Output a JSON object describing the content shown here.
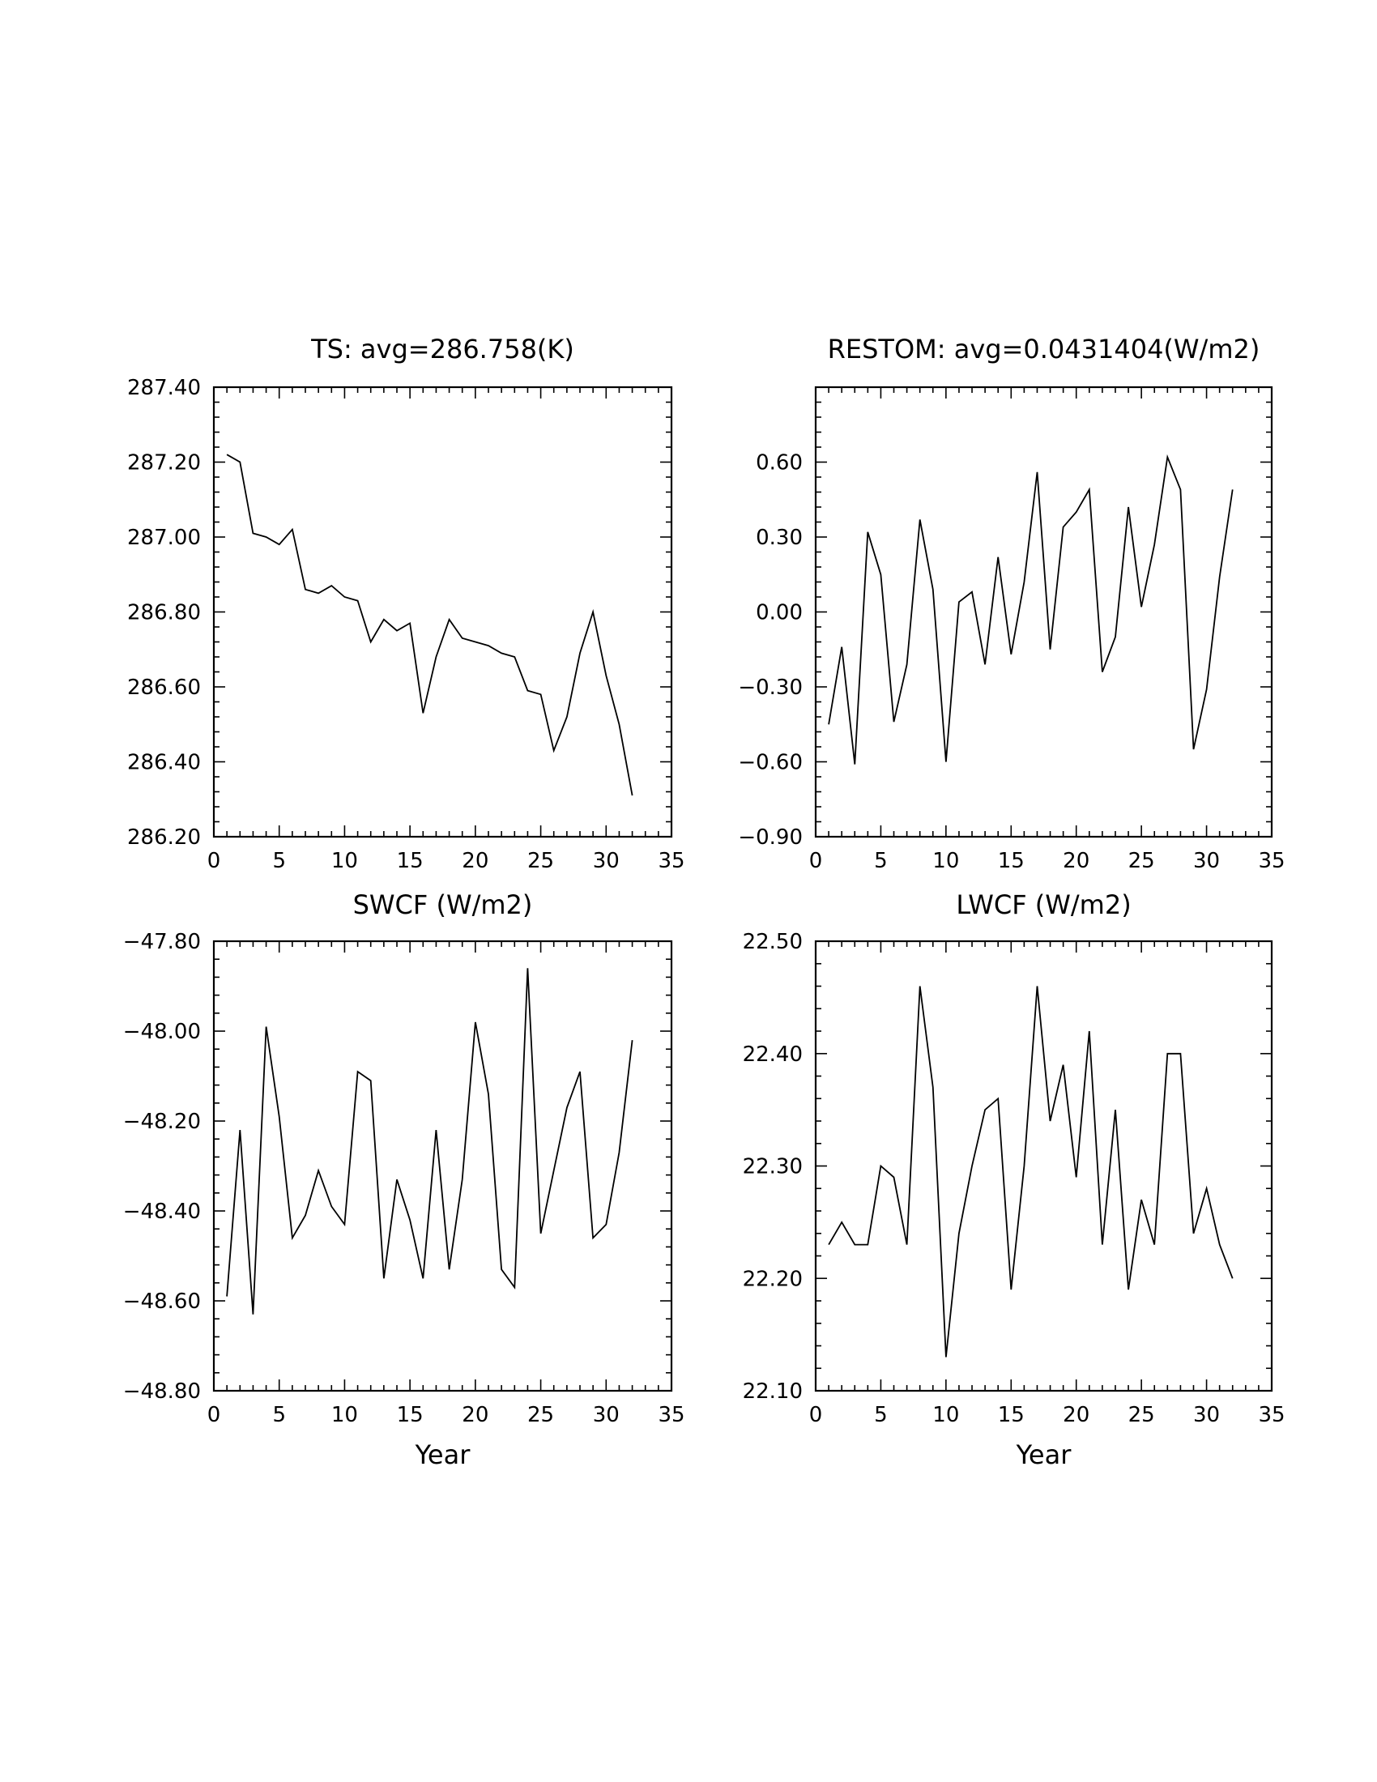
{
  "chart_data": [
    {
      "type": "line",
      "title": "TS: avg=286.758(K)",
      "xlabel": "",
      "ylabel": "",
      "xlim": [
        0,
        35
      ],
      "ylim": [
        286.2,
        287.4
      ],
      "xticks": [
        0,
        5,
        10,
        15,
        20,
        25,
        30,
        35
      ],
      "xtick_labels": [
        "0",
        "5",
        "10",
        "15",
        "20",
        "25",
        "30",
        "35"
      ],
      "yticks": [
        286.2,
        286.4,
        286.6,
        286.8,
        287.0,
        287.2,
        287.4
      ],
      "ytick_labels": [
        "286.20",
        "286.40",
        "286.60",
        "286.80",
        "287.00",
        "287.20",
        "287.40"
      ],
      "grid": false,
      "x": [
        1,
        2,
        3,
        4,
        5,
        6,
        7,
        8,
        9,
        10,
        11,
        12,
        13,
        14,
        15,
        16,
        17,
        18,
        19,
        20,
        21,
        22,
        23,
        24,
        25,
        26,
        27,
        28,
        29,
        30,
        31,
        32
      ],
      "values": [
        287.22,
        287.2,
        287.01,
        287.0,
        286.98,
        287.02,
        286.86,
        286.85,
        286.87,
        286.84,
        286.83,
        286.72,
        286.78,
        286.75,
        286.77,
        286.53,
        286.68,
        286.78,
        286.73,
        286.72,
        286.71,
        286.69,
        286.68,
        286.59,
        286.58,
        286.43,
        286.52,
        286.69,
        286.8,
        286.63,
        286.5,
        286.31
      ]
    },
    {
      "type": "line",
      "title": "RESTOM: avg=0.0431404(W/m2)",
      "xlabel": "",
      "ylabel": "",
      "xlim": [
        0,
        35
      ],
      "ylim": [
        -0.9,
        0.9
      ],
      "xticks": [
        0,
        5,
        10,
        15,
        20,
        25,
        30,
        35
      ],
      "xtick_labels": [
        "0",
        "5",
        "10",
        "15",
        "20",
        "25",
        "30",
        "35"
      ],
      "yticks": [
        -0.9,
        -0.6,
        -0.3,
        0.0,
        0.3,
        0.6
      ],
      "ytick_labels": [
        "−0.90",
        "−0.60",
        "−0.30",
        "0.00",
        "0.30",
        "0.60"
      ],
      "grid": false,
      "x": [
        1,
        2,
        3,
        4,
        5,
        6,
        7,
        8,
        9,
        10,
        11,
        12,
        13,
        14,
        15,
        16,
        17,
        18,
        19,
        20,
        21,
        22,
        23,
        24,
        25,
        26,
        27,
        28,
        29,
        30,
        31,
        32
      ],
      "values": [
        -0.45,
        -0.14,
        -0.61,
        0.32,
        0.15,
        -0.44,
        -0.21,
        0.37,
        0.09,
        -0.6,
        0.04,
        0.08,
        -0.21,
        0.22,
        -0.17,
        0.12,
        0.56,
        -0.15,
        0.34,
        0.4,
        0.49,
        -0.24,
        -0.1,
        0.42,
        0.02,
        0.27,
        0.62,
        0.49,
        -0.55,
        -0.31,
        0.14,
        0.49
      ]
    },
    {
      "type": "line",
      "title": "SWCF (W/m2)",
      "xlabel": "Year",
      "ylabel": "",
      "xlim": [
        0,
        35
      ],
      "ylim": [
        -48.8,
        -47.8
      ],
      "xticks": [
        0,
        5,
        10,
        15,
        20,
        25,
        30,
        35
      ],
      "xtick_labels": [
        "0",
        "5",
        "10",
        "15",
        "20",
        "25",
        "30",
        "35"
      ],
      "yticks": [
        -48.8,
        -48.6,
        -48.4,
        -48.2,
        -48.0,
        -47.8
      ],
      "ytick_labels": [
        "−48.80",
        "−48.60",
        "−48.40",
        "−48.20",
        "−48.00",
        "−47.80"
      ],
      "grid": false,
      "x": [
        1,
        2,
        3,
        4,
        5,
        6,
        7,
        8,
        9,
        10,
        11,
        12,
        13,
        14,
        15,
        16,
        17,
        18,
        19,
        20,
        21,
        22,
        23,
        24,
        25,
        26,
        27,
        28,
        29,
        30,
        31,
        32
      ],
      "values": [
        -48.59,
        -48.22,
        -48.63,
        -47.99,
        -48.19,
        -48.46,
        -48.41,
        -48.31,
        -48.39,
        -48.43,
        -48.09,
        -48.11,
        -48.55,
        -48.33,
        -48.42,
        -48.55,
        -48.22,
        -48.53,
        -48.33,
        -47.98,
        -48.14,
        -48.53,
        -48.57,
        -47.86,
        -48.45,
        -48.31,
        -48.17,
        -48.09,
        -48.46,
        -48.43,
        -48.27,
        -48.02
      ]
    },
    {
      "type": "line",
      "title": "LWCF (W/m2)",
      "xlabel": "Year",
      "ylabel": "",
      "xlim": [
        0,
        35
      ],
      "ylim": [
        22.1,
        22.5
      ],
      "xticks": [
        0,
        5,
        10,
        15,
        20,
        25,
        30,
        35
      ],
      "xtick_labels": [
        "0",
        "5",
        "10",
        "15",
        "20",
        "25",
        "30",
        "35"
      ],
      "yticks": [
        22.1,
        22.2,
        22.3,
        22.4,
        22.5
      ],
      "ytick_labels": [
        "22.10",
        "22.20",
        "22.30",
        "22.40",
        "22.50"
      ],
      "grid": false,
      "x": [
        1,
        2,
        3,
        4,
        5,
        6,
        7,
        8,
        9,
        10,
        11,
        12,
        13,
        14,
        15,
        16,
        17,
        18,
        19,
        20,
        21,
        22,
        23,
        24,
        25,
        26,
        27,
        28,
        29,
        30,
        31,
        32
      ],
      "values": [
        22.23,
        22.25,
        22.23,
        22.23,
        22.3,
        22.29,
        22.23,
        22.46,
        22.37,
        22.13,
        22.24,
        22.3,
        22.35,
        22.36,
        22.19,
        22.3,
        22.46,
        22.34,
        22.39,
        22.29,
        22.42,
        22.23,
        22.35,
        22.19,
        22.27,
        22.23,
        22.4,
        22.4,
        22.24,
        22.28,
        22.23,
        22.2
      ]
    }
  ]
}
